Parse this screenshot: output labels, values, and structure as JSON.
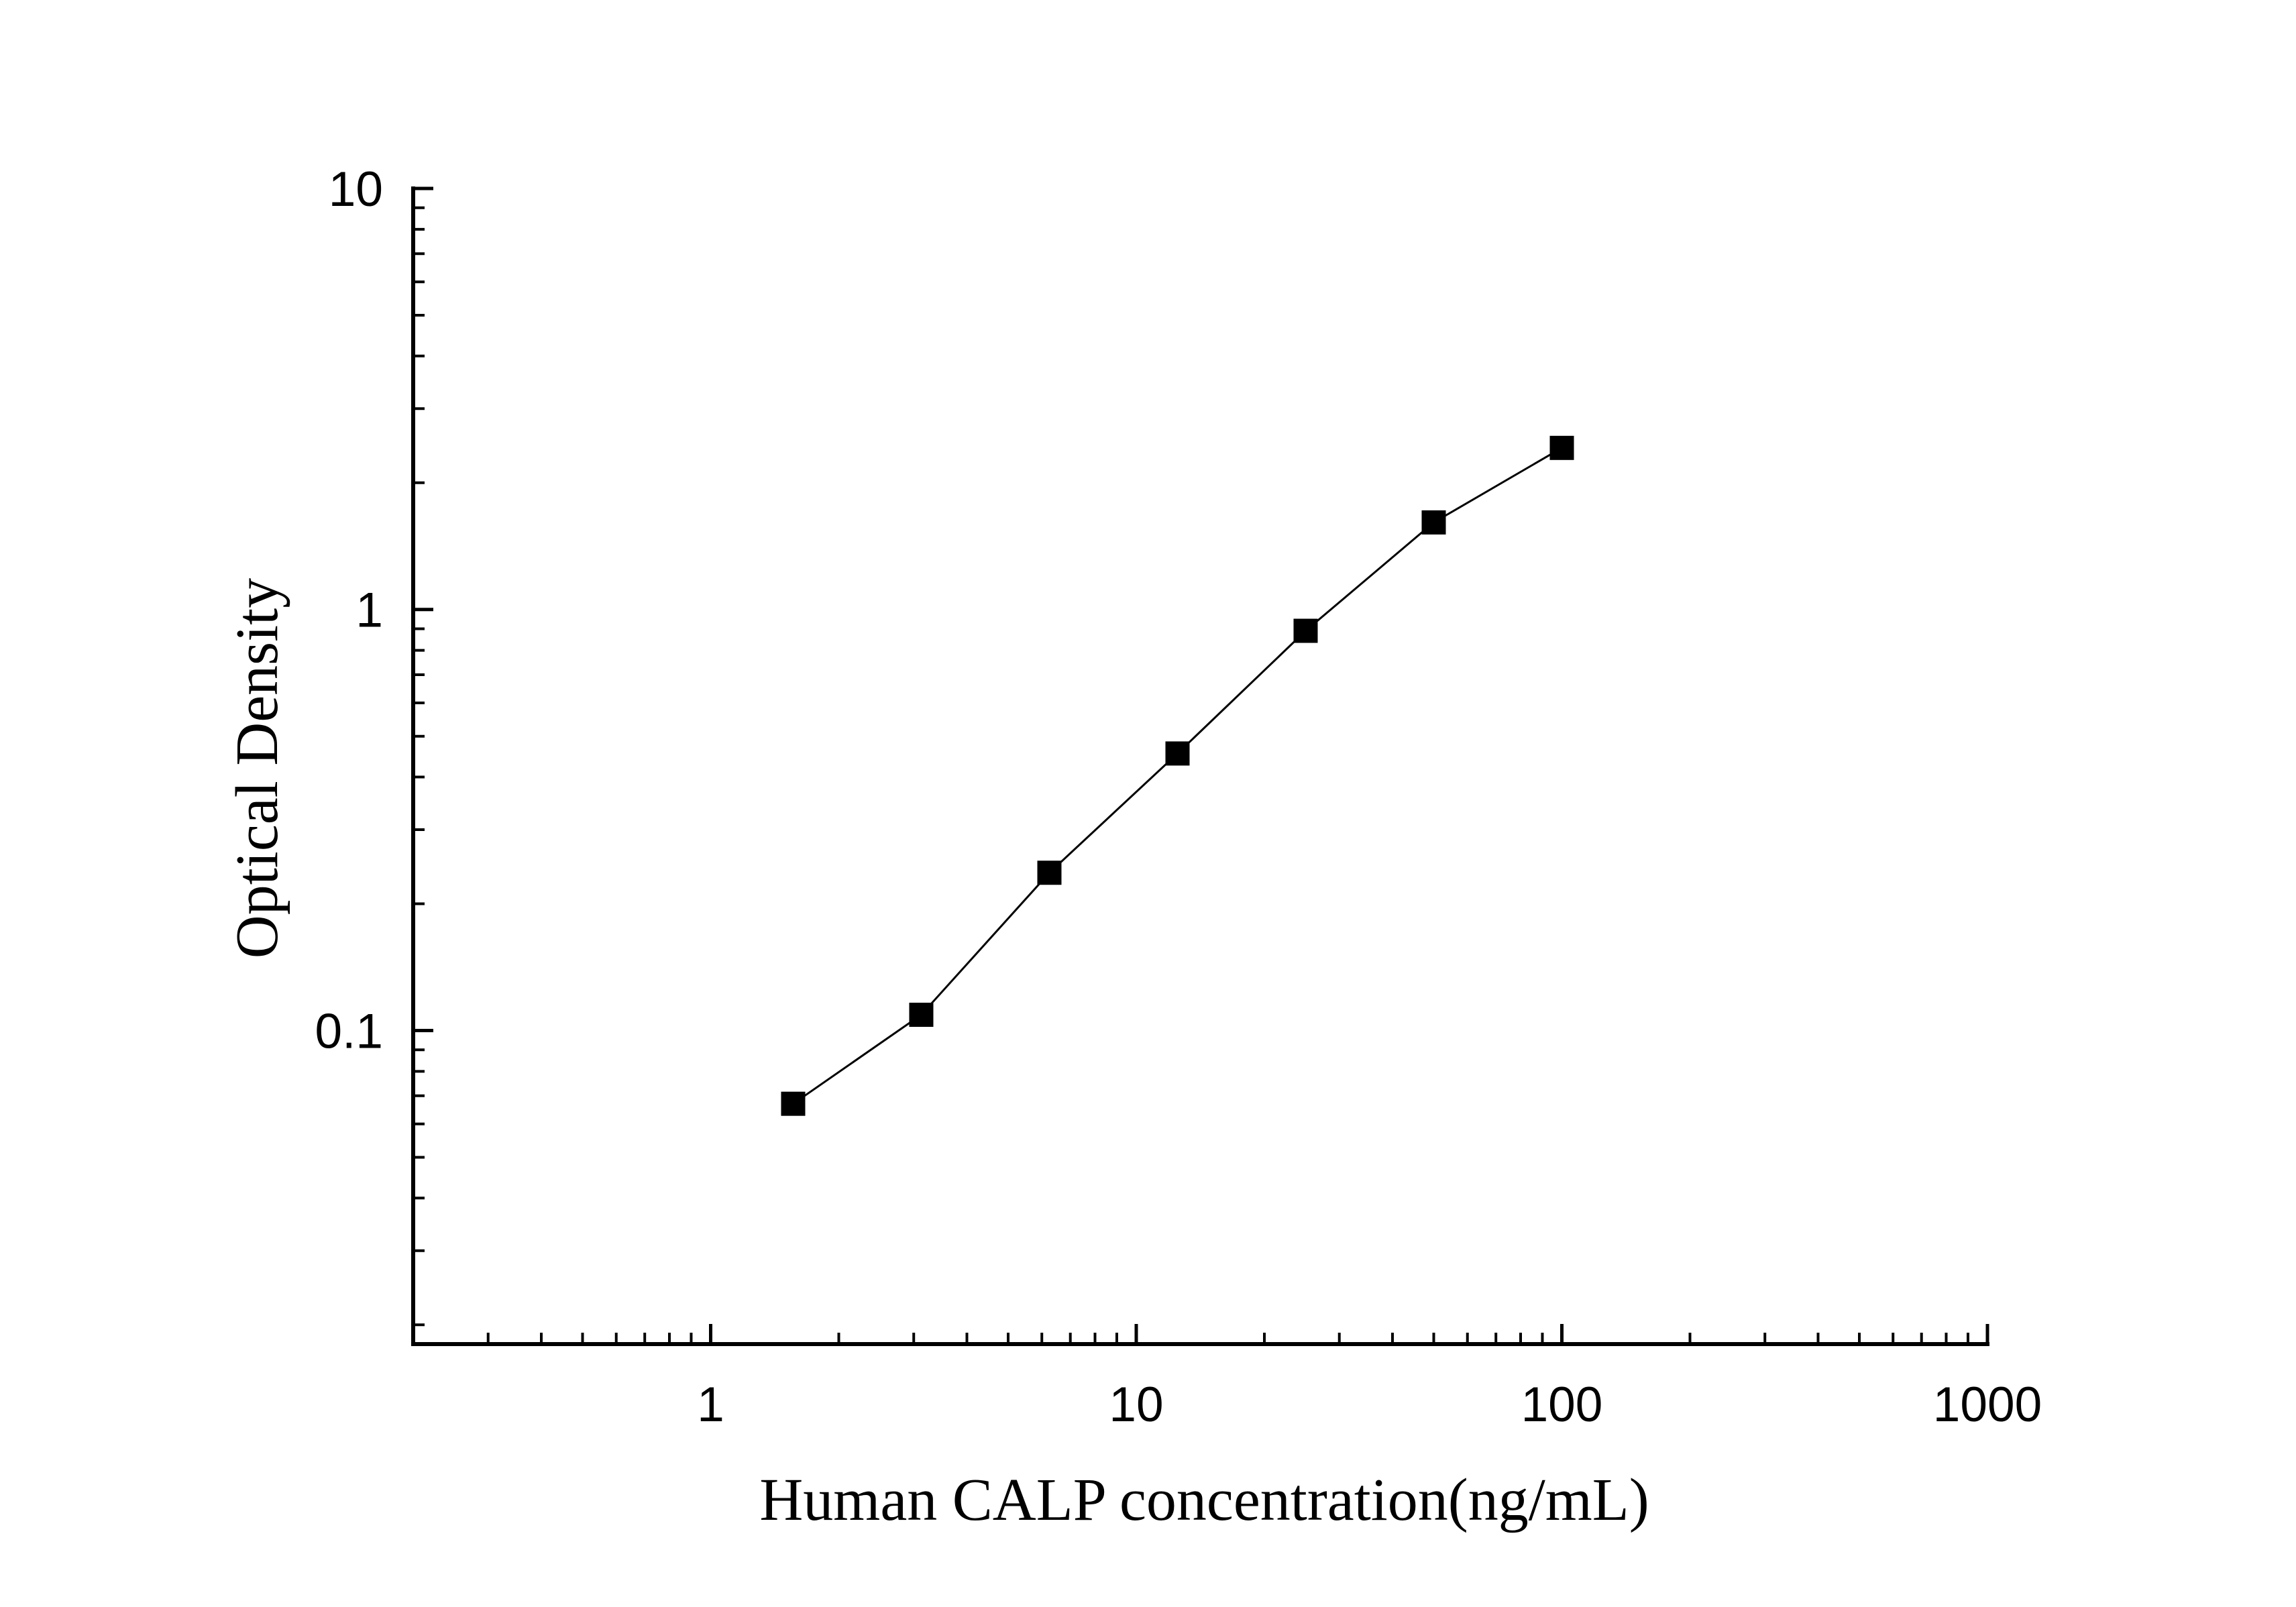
{
  "chart_data": {
    "type": "scatter",
    "title": "",
    "xlabel": "Human CALP concentration(ng/mL)",
    "ylabel": "Optical Density",
    "xscale": "log",
    "yscale": "log",
    "xlim": [
      0.2,
      1000
    ],
    "ylim": [
      0.018,
      10
    ],
    "xticks": [
      {
        "value": 1,
        "label": "1"
      },
      {
        "value": 10,
        "label": "10"
      },
      {
        "value": 100,
        "label": "100"
      },
      {
        "value": 1000,
        "label": "1000"
      }
    ],
    "yticks": [
      {
        "value": 0.1,
        "label": "0.1"
      },
      {
        "value": 1,
        "label": "1"
      },
      {
        "value": 10,
        "label": "10"
      }
    ],
    "grid": false,
    "legend": "none",
    "series": [
      {
        "marker": "square",
        "line": true,
        "color": "#000000",
        "x": [
          1.5625,
          3.125,
          6.25,
          12.5,
          25,
          50,
          100
        ],
        "y": [
          0.067,
          0.109,
          0.237,
          0.455,
          0.89,
          1.61,
          2.42
        ]
      }
    ]
  }
}
